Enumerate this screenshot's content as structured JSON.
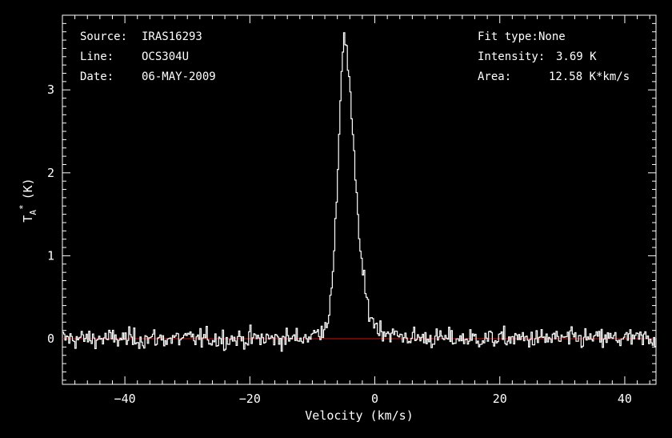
{
  "chart_data": {
    "type": "line",
    "xlabel": "Velocity (km/s)",
    "ylabel_main": "T",
    "ylabel_sub": "A",
    "ylabel_sup": "*",
    "ylabel_unit": "(K)",
    "xlim": [
      -50,
      45
    ],
    "ylim": [
      -0.55,
      3.9
    ],
    "x_ticks": [
      -40,
      -20,
      0,
      20,
      40
    ],
    "x_tick_labels": [
      "−40",
      "−20",
      "0",
      "20",
      "40"
    ],
    "y_ticks": [
      0,
      1,
      2,
      3
    ],
    "y_tick_labels": [
      "0",
      "1",
      "2",
      "3"
    ],
    "baseline_y": 0,
    "grid": false,
    "colors": {
      "background": "#000000",
      "line": "#ffffff",
      "baseline": "#cc1010",
      "axes": "#ffffff"
    },
    "info_left": [
      {
        "label": "Source:",
        "value": "IRAS16293"
      },
      {
        "label": "Line:",
        "value": "OCS304U"
      },
      {
        "label": "Date:",
        "value": "06-MAY-2009"
      }
    ],
    "info_right": [
      {
        "label": "Fit type:",
        "value": "None"
      },
      {
        "label": "Intensity:",
        "value": "3.69 K"
      },
      {
        "label": "Area:",
        "value": "12.58 K*km/s"
      }
    ],
    "series": [
      {
        "peak_velocity": -5.0,
        "peak_intensity": 3.69,
        "rms_noise": 0.12,
        "channel_width": 0.2
      }
    ]
  }
}
